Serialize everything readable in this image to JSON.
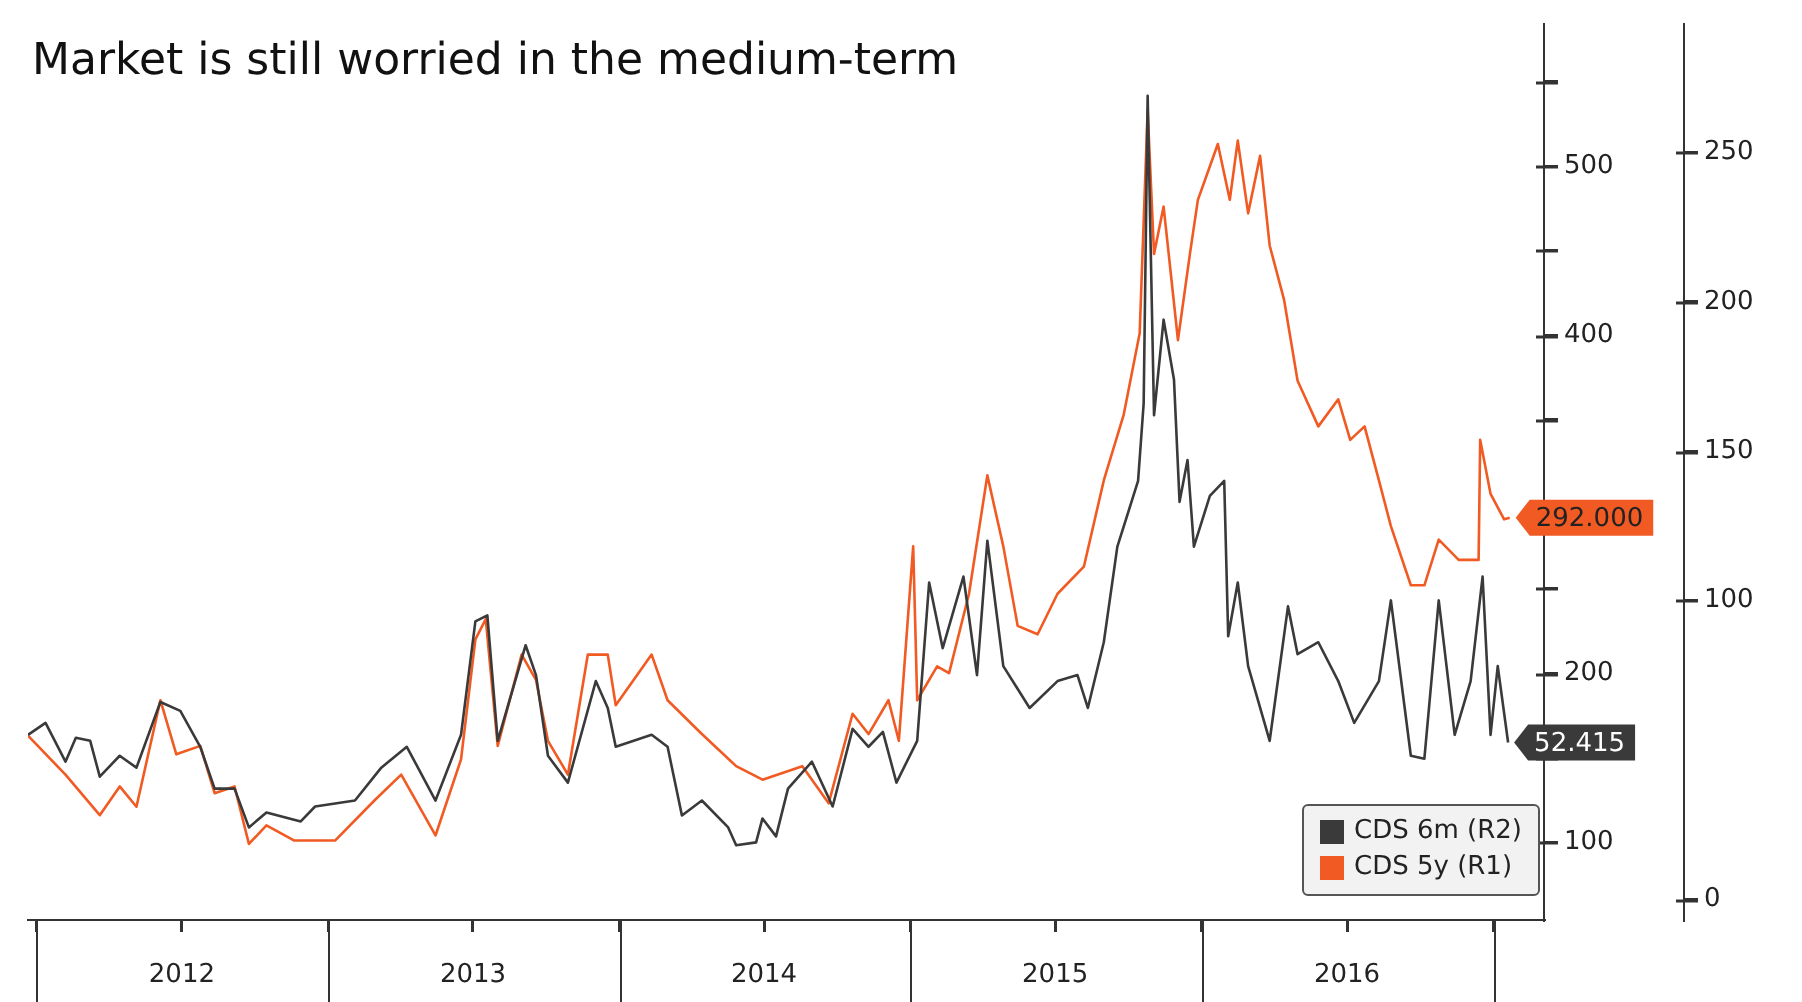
{
  "chart_data": {
    "type": "line",
    "title": "Market is still worried in the medium-term",
    "xlim": [
      "2011-12-21",
      "2017-03-05"
    ],
    "xticks": [
      {
        "value": "2012-01-01",
        "label": null
      },
      {
        "value": "2012-07-01",
        "label": "2012"
      },
      {
        "value": "2013-01-01",
        "label": null
      },
      {
        "value": "2013-07-01",
        "label": "2013"
      },
      {
        "value": "2014-01-01",
        "label": null
      },
      {
        "value": "2014-07-01",
        "label": "2014"
      },
      {
        "value": "2015-01-01",
        "label": null
      },
      {
        "value": "2015-07-01",
        "label": "2015"
      },
      {
        "value": "2016-01-01",
        "label": null
      },
      {
        "value": "2016-07-01",
        "label": "2016"
      },
      {
        "value": "2017-01-01",
        "label": null
      }
    ],
    "ylim": [
      54,
      584
    ],
    "yticks": [
      100,
      {
        "value": 150,
        "label": null
      },
      200,
      {
        "value": 250,
        "label": null
      },
      {
        "value": 300,
        "label": null
      },
      {
        "value": 350,
        "label": null
      },
      400,
      {
        "value": 450,
        "label": null
      },
      500,
      {
        "value": 550,
        "label": null
      }
    ],
    "y2lim": [
      -7,
      293
    ],
    "y2ticks": [
      0,
      100,
      150,
      200,
      250
    ],
    "grid": false,
    "legend": "bottom right",
    "marker": "none",
    "line_style": "solid",
    "series": [
      {
        "name": "CDS 6m (R2)",
        "color": "#3a3a3a",
        "axis": "y2",
        "x": [
          "2011-12-21",
          "2012-01-12",
          "2012-02-06",
          "2012-02-19",
          "2012-03-08",
          "2012-03-20",
          "2012-04-14",
          "2012-05-05",
          "2012-06-04",
          "2012-06-29",
          "2012-07-24",
          "2012-08-11",
          "2012-09-05",
          "2012-09-23",
          "2012-10-15",
          "2012-11-27",
          "2012-12-15",
          "2013-02-03",
          "2013-03-08",
          "2013-04-09",
          "2013-05-15",
          "2013-06-16",
          "2013-07-04",
          "2013-07-19",
          "2013-08-01",
          "2013-09-05",
          "2013-09-18",
          "2013-10-03",
          "2013-10-28",
          "2013-12-02",
          "2013-12-17",
          "2013-12-27",
          "2014-02-10",
          "2014-03-02",
          "2014-03-20",
          "2014-04-14",
          "2014-05-17",
          "2014-05-27",
          "2014-06-21",
          "2014-06-29",
          "2014-07-16",
          "2014-07-31",
          "2014-08-30",
          "2014-09-25",
          "2014-10-20",
          "2014-11-09",
          "2014-11-27",
          "2014-12-14",
          "2015-01-09",
          "2015-01-24",
          "2015-02-10",
          "2015-03-08",
          "2015-03-25",
          "2015-04-07",
          "2015-04-27",
          "2015-05-30",
          "2015-07-04",
          "2015-07-29",
          "2015-08-11",
          "2015-08-31",
          "2015-09-17",
          "2015-10-13",
          "2015-10-20",
          "2015-10-25",
          "2015-11-02",
          "2015-11-14",
          "2015-11-27",
          "2015-12-04",
          "2015-12-14",
          "2015-12-22",
          "2016-01-11",
          "2016-01-29",
          "2016-02-03",
          "2016-02-15",
          "2016-02-28",
          "2016-03-26",
          "2016-04-18",
          "2016-04-30",
          "2016-05-26",
          "2016-06-20",
          "2016-07-10",
          "2016-08-10",
          "2016-08-25",
          "2016-09-19",
          "2016-10-06",
          "2016-10-24",
          "2016-11-13",
          "2016-12-03",
          "2016-12-18",
          "2016-12-28",
          "2017-01-06",
          "2017-01-19"
        ],
        "values": [
          55,
          59,
          46,
          54,
          53,
          41,
          48,
          44,
          66,
          63,
          51,
          37,
          37,
          24,
          29,
          26,
          31,
          33,
          44,
          51,
          33,
          55,
          93,
          95,
          53,
          85,
          75,
          48,
          39,
          73,
          64,
          51,
          55,
          51,
          28,
          33,
          24,
          18,
          19,
          27,
          21,
          37,
          46,
          31,
          57,
          51,
          56,
          39,
          53,
          106,
          84,
          108,
          75,
          120,
          78,
          64,
          73,
          75,
          64,
          86,
          118,
          140,
          166,
          269,
          162,
          194,
          174,
          133,
          147,
          118,
          135,
          140,
          88,
          106,
          78,
          53,
          98,
          82,
          86,
          73,
          59,
          73,
          100,
          48,
          47,
          100,
          55,
          73,
          108,
          55,
          78,
          52.415
        ],
        "value_labels": [
          null,
          null,
          null,
          null,
          null,
          null,
          null,
          null,
          null,
          null,
          null,
          null,
          null,
          null,
          null,
          null,
          null,
          null,
          null,
          null,
          null,
          null,
          null,
          null,
          null,
          null,
          null,
          null,
          null,
          null,
          null,
          null,
          null,
          null,
          null,
          null,
          null,
          null,
          null,
          null,
          null,
          null,
          null,
          null,
          null,
          null,
          null,
          null,
          null,
          null,
          null,
          null,
          null,
          null,
          null,
          null,
          null,
          null,
          null,
          null,
          null,
          null,
          null,
          null,
          null,
          null,
          null,
          null,
          null,
          null,
          null,
          null,
          null,
          null,
          null,
          null,
          null,
          null,
          null,
          null,
          null,
          null,
          null,
          null,
          null,
          null,
          null,
          null,
          null,
          null,
          null,
          "52.415"
        ]
      },
      {
        "name": "CDS 5y (R1)",
        "color": "#f15a22",
        "x": [
          "2011-12-21",
          "2012-02-06",
          "2012-03-20",
          "2012-04-14",
          "2012-05-05",
          "2012-06-04",
          "2012-06-24",
          "2012-07-24",
          "2012-08-11",
          "2012-09-05",
          "2012-09-23",
          "2012-10-15",
          "2012-11-19",
          "2013-01-09",
          "2013-02-28",
          "2013-04-02",
          "2013-05-15",
          "2013-06-16",
          "2013-07-04",
          "2013-07-17",
          "2013-08-01",
          "2013-08-31",
          "2013-09-18",
          "2013-10-03",
          "2013-10-28",
          "2013-11-22",
          "2013-12-17",
          "2013-12-27",
          "2014-02-10",
          "2014-03-02",
          "2014-04-14",
          "2014-05-27",
          "2014-06-29",
          "2014-08-18",
          "2014-09-20",
          "2014-10-20",
          "2014-11-09",
          "2014-12-04",
          "2014-12-17",
          "2015-01-04",
          "2015-01-09",
          "2015-02-03",
          "2015-02-18",
          "2015-03-15",
          "2015-04-07",
          "2015-04-27",
          "2015-05-15",
          "2015-06-09",
          "2015-07-04",
          "2015-08-06",
          "2015-08-31",
          "2015-09-25",
          "2015-10-15",
          "2015-10-25",
          "2015-11-02",
          "2015-11-14",
          "2015-12-02",
          "2015-12-17",
          "2015-12-27",
          "2016-01-21",
          "2016-02-05",
          "2016-02-15",
          "2016-02-28",
          "2016-03-14",
          "2016-03-26",
          "2016-04-13",
          "2016-04-30",
          "2016-05-26",
          "2016-06-20",
          "2016-07-05",
          "2016-07-23",
          "2016-08-10",
          "2016-08-25",
          "2016-09-19",
          "2016-10-06",
          "2016-10-24",
          "2016-11-18",
          "2016-12-13",
          "2016-12-15",
          "2016-12-28",
          "2017-01-14",
          "2017-01-21"
        ],
        "values": [
          163,
          140,
          116,
          133,
          121,
          184,
          152,
          157,
          129,
          133,
          99,
          110,
          101,
          101,
          125,
          140,
          104,
          149,
          220,
          232,
          157,
          211,
          196,
          160,
          140,
          211,
          211,
          181,
          211,
          184,
          164,
          145,
          137,
          145,
          123,
          176,
          164,
          184,
          160,
          275,
          184,
          204,
          200,
          247,
          317,
          275,
          228,
          223,
          247,
          263,
          314,
          353,
          401,
          533,
          448,
          476,
          397,
          448,
          480,
          513,
          480,
          515,
          472,
          506,
          453,
          421,
          373,
          346,
          362,
          338,
          346,
          314,
          287,
          252,
          252,
          279,
          267,
          267,
          338,
          306,
          291,
          292
        ],
        "value_labels": [
          null,
          null,
          null,
          null,
          null,
          null,
          null,
          null,
          null,
          null,
          null,
          null,
          null,
          null,
          null,
          null,
          null,
          null,
          null,
          null,
          null,
          null,
          null,
          null,
          null,
          null,
          null,
          null,
          null,
          null,
          null,
          null,
          null,
          null,
          null,
          null,
          null,
          null,
          null,
          null,
          null,
          null,
          null,
          null,
          null,
          null,
          null,
          null,
          null,
          null,
          null,
          null,
          null,
          null,
          null,
          null,
          null,
          null,
          null,
          null,
          null,
          null,
          null,
          null,
          null,
          null,
          null,
          null,
          null,
          null,
          null,
          null,
          null,
          null,
          null,
          null,
          null,
          null,
          null,
          null,
          null,
          "292.000"
        ]
      }
    ]
  }
}
